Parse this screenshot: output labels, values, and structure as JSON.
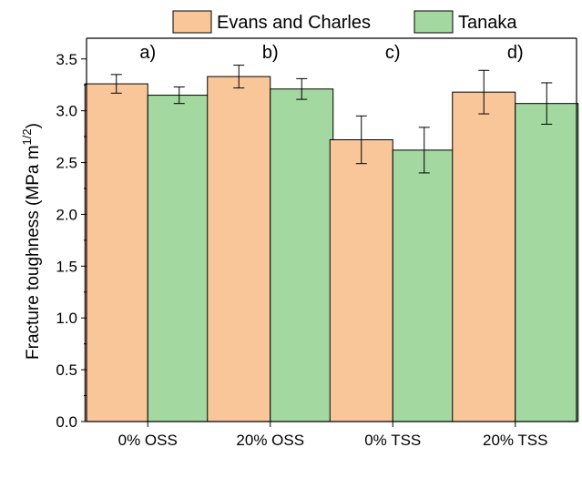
{
  "chart_data": {
    "type": "bar",
    "categories": [
      "0% OSS",
      "20% OSS",
      "0% TSS",
      "20% TSS"
    ],
    "panel_labels": [
      "a)",
      "b)",
      "c)",
      "d)"
    ],
    "series": [
      {
        "name": "Evans and Charles",
        "values": [
          3.26,
          3.33,
          2.72,
          3.18
        ],
        "errors": [
          0.09,
          0.11,
          0.23,
          0.21
        ],
        "color": "#f9c69a"
      },
      {
        "name": "Tanaka",
        "values": [
          3.15,
          3.21,
          2.62,
          3.07
        ],
        "errors": [
          0.08,
          0.1,
          0.22,
          0.2
        ],
        "color": "#a3d8a0"
      }
    ],
    "ylabel": "Fracture toughness (MPa m",
    "ylabel_superscript": "1/2",
    "ylabel_suffix": ")",
    "ylim": [
      0,
      3.7
    ],
    "yticks": [
      "0.0",
      "0.5",
      "1.0",
      "1.5",
      "2.0",
      "2.5",
      "3.0",
      "3.5"
    ],
    "legend": "top",
    "grid": false
  }
}
